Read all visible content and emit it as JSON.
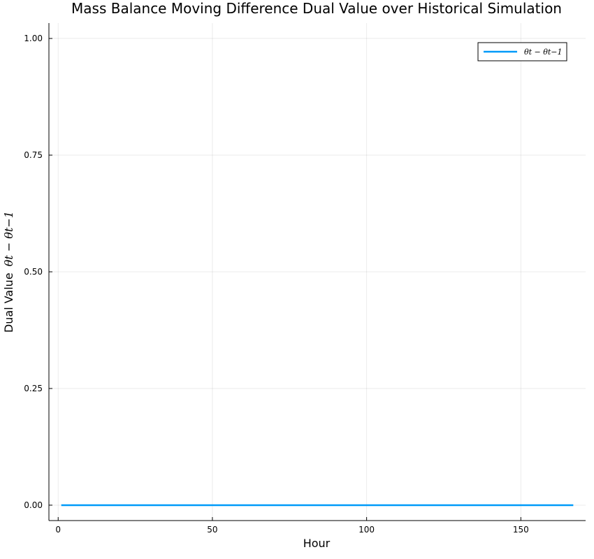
{
  "chart_data": {
    "type": "line",
    "title": "Mass Balance Moving Difference Dual Value over Historical Simulation",
    "xlabel": "Hour",
    "ylabel_prefix": "Dual Value",
    "ylabel_math": "θt − θt−1",
    "xlim": [
      -3,
      171
    ],
    "ylim": [
      -0.033,
      1.033
    ],
    "xticks": [
      0,
      50,
      100,
      150
    ],
    "xtick_labels": [
      "0",
      "50",
      "100",
      "150"
    ],
    "yticks": [
      0,
      0.25,
      0.5,
      0.75,
      1
    ],
    "ytick_labels": [
      "0.00",
      "0.25",
      "0.50",
      "0.75",
      "1.00"
    ],
    "grid": true,
    "legend_position": "top-right",
    "series": [
      {
        "name": "θt − θt−1",
        "color": "#009af9",
        "x": [
          1,
          167
        ],
        "y": [
          0,
          0
        ]
      }
    ]
  }
}
